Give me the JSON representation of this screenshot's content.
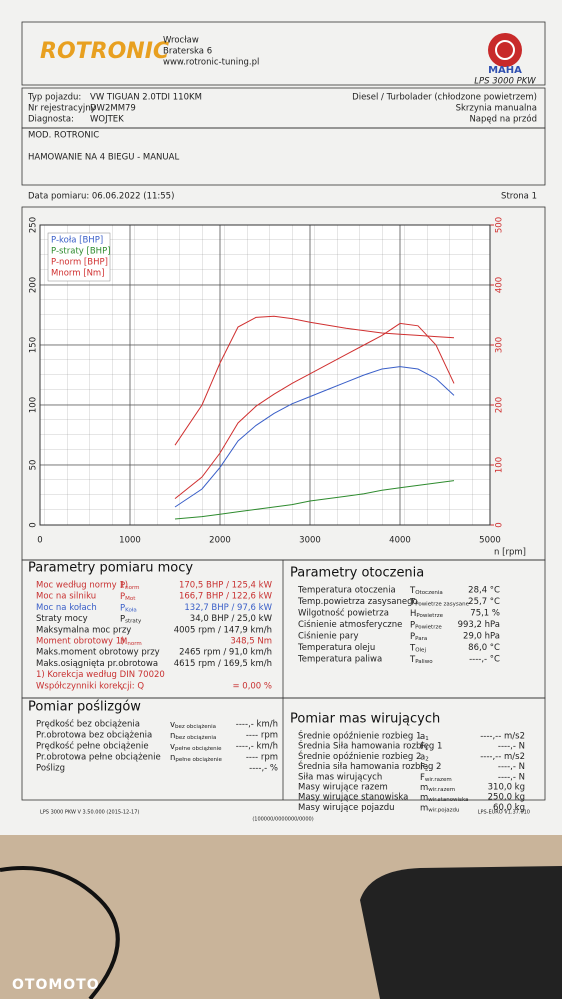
{
  "header": {
    "logo": "ROTRONIC",
    "address": [
      "Wrocław",
      "Braterska 6",
      "www.rotronic-tuning.pl"
    ],
    "brand": "MAHA",
    "model": "LPS 3000 PKW"
  },
  "vehicle": {
    "left": [
      [
        "Typ pojazdu:",
        "VW TIGUAN 2.0TDI 110KM"
      ],
      [
        "Nr rejestracyjny",
        "DW2MM79"
      ],
      [
        "Diagnosta:",
        "WOJTEK"
      ]
    ],
    "right": [
      "Diesel / Turbolader (chłodzone powietrzem)",
      "Skrzynia manualna",
      "Napęd na przód"
    ]
  },
  "mod": [
    "MOD. ROTRONIC",
    "HAMOWANIE NA 4 BIEGU  - MANUAL"
  ],
  "date": "Data pomiaru: 06.06.2022 (11:55)",
  "page": "Strona 1",
  "chart_data": {
    "type": "line",
    "x": [
      1500,
      1800,
      2000,
      2200,
      2400,
      2600,
      2800,
      3000,
      3200,
      3400,
      3600,
      3800,
      4000,
      4200,
      4400,
      4600
    ],
    "xlim": [
      0,
      5000
    ],
    "xticks": [
      0,
      1000,
      2000,
      3000,
      4000,
      5000
    ],
    "xlabel": "n [rpm]",
    "ylim": [
      0,
      250
    ],
    "yticks": [
      0,
      50,
      100,
      150,
      200,
      250
    ],
    "y2lim": [
      0,
      500
    ],
    "y2ticks": [
      0,
      100,
      200,
      300,
      400,
      500
    ],
    "grid": true,
    "legend": "upper left",
    "series": [
      {
        "name": "P-koła [BHP]",
        "color": "#3a5fc8",
        "values": [
          15,
          30,
          48,
          70,
          83,
          93,
          101,
          107,
          113,
          119,
          125,
          130,
          132,
          130,
          122,
          108
        ]
      },
      {
        "name": "P-straty [BHP]",
        "color": "#2e8b2e",
        "values": [
          5,
          7,
          9,
          11,
          13,
          15,
          17,
          20,
          22,
          24,
          26,
          29,
          31,
          33,
          35,
          37
        ]
      },
      {
        "name": "P-norm [BHP]",
        "color": "#d03030",
        "values": [
          22,
          40,
          60,
          85,
          99,
          109,
          118,
          126,
          134,
          142,
          150,
          158,
          168,
          166,
          150,
          118
        ]
      },
      {
        "name": "Mnorm [Nm]",
        "color": "#d03030",
        "axis": "y2",
        "values": [
          133,
          200,
          270,
          330,
          346,
          348,
          344,
          338,
          333,
          328,
          324,
          320,
          318,
          316,
          314,
          312
        ]
      }
    ]
  },
  "power": {
    "title": "Parametry pomiaru mocy",
    "rows": [
      {
        "label": "Moc według normy 1)",
        "sym": "P",
        "sub": "norm",
        "value": "170,5  BHP  /  125,4  kW",
        "color": "#c83030"
      },
      {
        "label": "Moc na silniku",
        "sym": "P",
        "sub": "Mot",
        "value": "166,7  BHP  /  122,6  kW",
        "color": "#c83030"
      },
      {
        "label": "Moc na kołach",
        "sym": "P",
        "sub": "Koła",
        "value": "132,7  BHP  /  97,6  kW",
        "color": "#3a5fc8"
      },
      {
        "label": "Straty mocy",
        "sym": "P",
        "sub": "straty",
        "value": "34,0  BHP  /  25,0  kW",
        "color": "#222"
      },
      {
        "label": "Maksymalna moc przy",
        "value": "4005  rpm  /  147,9  km/h",
        "color": "#222"
      },
      {
        "label": "Moment obrotowy 1)",
        "sym": "M",
        "sub": "norm",
        "value": "348,5  Nm",
        "color": "#c83030"
      },
      {
        "label": "Maks.moment obrotowy przy",
        "value": "2465  rpm  /  91,0  km/h",
        "color": "#222"
      },
      {
        "label": "Maks.osiągnięta pr.obrotowa",
        "value": "4615  rpm  /  169,5  km/h",
        "color": "#222"
      },
      {
        "label": "1) Korekcja według DIN 70020",
        "color": "#c83030"
      },
      {
        "label": "Współczynniki korekcji: Q",
        "sym": "",
        "sub": "V",
        "value": "= 0,00 %",
        "color": "#c83030"
      }
    ]
  },
  "ambient": {
    "title": "Parametry otoczenia",
    "rows": [
      {
        "label": "Temperatura otoczenia",
        "sym": "T",
        "sub": "Otoczenia",
        "value": "28,4  °C"
      },
      {
        "label": "Temp.powietrza zasysanego",
        "sym": "T",
        "sub": "Powietrze zasysane",
        "value": "25,7  °C"
      },
      {
        "label": "Wilgotność powietrza",
        "sym": "H",
        "sub": "Powietrze",
        "value": "75,1  %"
      },
      {
        "label": "Ciśnienie atmosferyczne",
        "sym": "P",
        "sub": "Powietrze",
        "value": "993,2  hPa"
      },
      {
        "label": "Ciśnienie pary",
        "sym": "P",
        "sub": "Para",
        "value": "29,0  hPa"
      },
      {
        "label": "Temperatura oleju",
        "sym": "T",
        "sub": "Olej",
        "value": "86,0  °C"
      },
      {
        "label": "Temperatura paliwa",
        "sym": "T",
        "sub": "Paliwo",
        "value": "----,-  °C"
      }
    ]
  },
  "slip": {
    "title": "Pomiar poślizgów",
    "rows": [
      {
        "label": "Prędkość bez obciążenia",
        "sym": "v",
        "sub": "bez obciążenia",
        "value": "----,-  km/h"
      },
      {
        "label": "Pr.obrotowa bez obciążenia",
        "sym": "n",
        "sub": "bez obciążenia",
        "value": "----  rpm"
      },
      {
        "label": "Prędkość pełne obciążenie",
        "sym": "v",
        "sub": "pełne obciążenie",
        "value": "----,-  km/h"
      },
      {
        "label": "Pr.obrotowa pełne obciążenie",
        "sym": "n",
        "sub": "pełne obciążenie",
        "value": "----  rpm"
      },
      {
        "label": "Poślizg",
        "value": "----,-  %"
      }
    ]
  },
  "masses": {
    "title": "Pomiar mas wirujących",
    "rows": [
      {
        "label": "Średnie opóźnienie rozbieg 1",
        "sym": "a",
        "sub": "1",
        "value": "----,--  m/s2"
      },
      {
        "label": "Średnia Siła hamowania rozbieg 1",
        "sym": "F",
        "sub": "1",
        "value": "----,-  N"
      },
      {
        "label": "Średnie opóźnienie rozbieg 2",
        "sym": "a",
        "sub": "2",
        "value": "----,--  m/s2"
      },
      {
        "label": "Średnia siła hamowania rozbieg 2",
        "sym": "F",
        "sub": "2",
        "value": "----,-  N"
      },
      {
        "label": "Siła mas wirujących",
        "sym": "F",
        "sub": "wir.razem",
        "value": "----,-  N"
      },
      {
        "label": "Masy wirujące razem",
        "sym": "m",
        "sub": "wir.razem",
        "value": "310,0  kg"
      },
      {
        "label": "Masy wirujące stanowiska",
        "sym": "m",
        "sub": "wir.stanowiska",
        "value": "250,0  kg"
      },
      {
        "label": "Masy wirujące pojazdu",
        "sym": "m",
        "sub": "wir.pojazdu",
        "value": "60,0  kg"
      }
    ]
  },
  "footer": [
    "LPS 3000 PKW V 3.50.000 (2015-12-17)",
    "(100000/0000000/0000)",
    "LPS-EURO V1.37.010"
  ],
  "watermark": "OTOMOTO"
}
